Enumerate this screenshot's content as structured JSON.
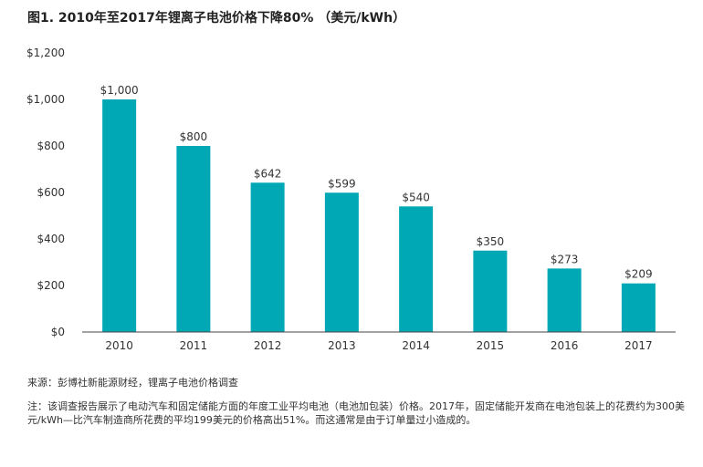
{
  "page": {
    "title": "图1. 2010年至2017年锂离子电池价格下降80%  （美元/kWh）",
    "source": "来源：彭博社新能源财经，锂离子电池价格调查",
    "note": "注：该调查报告展示了电动汽车和固定储能方面的年度工业平均电池（电池加包装）价格。2017年，固定储能开发商在电池包装上的花费约为300美元/kWh—比汽车制造商所花费的平均199美元的价格高出51%。而这通常是由于订单量过小造成的。"
  },
  "chart_data": {
    "type": "bar",
    "categories": [
      "2010",
      "2011",
      "2012",
      "2013",
      "2014",
      "2015",
      "2016",
      "2017"
    ],
    "values": [
      1000,
      800,
      642,
      599,
      540,
      350,
      273,
      209
    ],
    "data_labels": [
      "$1,000",
      "$800",
      "$642",
      "$599",
      "$540",
      "$350",
      "$273",
      "$209"
    ],
    "ylim": [
      0,
      1200
    ],
    "yticks": [
      0,
      200,
      400,
      600,
      800,
      1000,
      1200
    ],
    "ytick_labels": [
      "$0",
      "$200",
      "$400",
      "$600",
      "$800",
      "$1,000",
      "$1,200"
    ],
    "grid": false,
    "colors": {
      "bar": "#00a7b5",
      "axis": "#444444",
      "text": "#333333"
    }
  }
}
